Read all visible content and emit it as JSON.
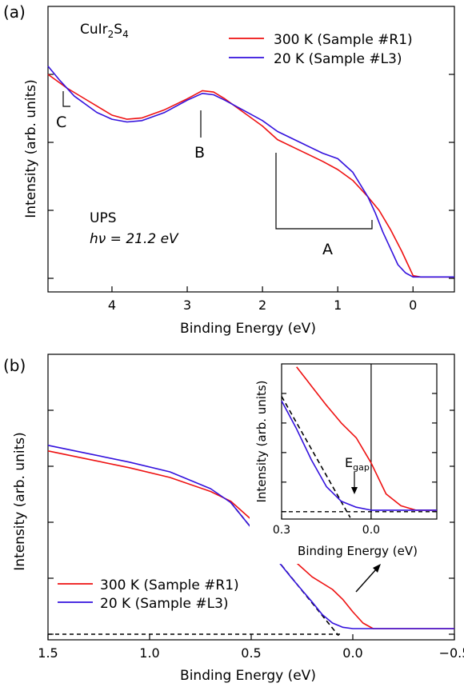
{
  "chart_data": [
    {
      "type": "line",
      "panel_label": "(a)",
      "compound": "CuIr",
      "compound_sub1": "2",
      "compound_mid": "S",
      "compound_sub2": "4",
      "xlabel": "Binding Energy (eV)",
      "ylabel": "Intensity (arb. units)",
      "xlim": [
        4.85,
        -0.55
      ],
      "x_reversed": true,
      "x_ticks": [
        4,
        3,
        2,
        1,
        0
      ],
      "x_tick_labels": [
        "4",
        "3",
        "2",
        "1",
        "0"
      ],
      "y_ticks": [
        0,
        0.25,
        0.5,
        0.75
      ],
      "ylim": [
        -0.05,
        1.0
      ],
      "method_label": "UPS",
      "photon_label": "hν = 21.2 eV",
      "feature_labels": [
        "A",
        "B",
        "C"
      ],
      "legend_placement": "top-right",
      "series": [
        {
          "name": "300 K (Sample #R1)",
          "color": "#ee1111",
          "x": [
            4.85,
            4.6,
            4.3,
            4.0,
            3.8,
            3.6,
            3.3,
            3.0,
            2.8,
            2.65,
            2.5,
            2.2,
            2.0,
            1.8,
            1.5,
            1.2,
            1.0,
            0.8,
            0.6,
            0.45,
            0.3,
            0.15,
            0.05,
            0.0,
            -0.1,
            -0.55
          ],
          "y": [
            0.75,
            0.7,
            0.65,
            0.6,
            0.585,
            0.59,
            0.62,
            0.66,
            0.69,
            0.685,
            0.66,
            0.6,
            0.56,
            0.51,
            0.47,
            0.43,
            0.4,
            0.36,
            0.3,
            0.25,
            0.18,
            0.1,
            0.04,
            0.01,
            0.005,
            0.005
          ]
        },
        {
          "name": "20 K (Sample #L3)",
          "color": "#3311dd",
          "x": [
            4.85,
            4.7,
            4.5,
            4.2,
            4.0,
            3.8,
            3.6,
            3.3,
            3.0,
            2.8,
            2.65,
            2.5,
            2.2,
            2.0,
            1.8,
            1.5,
            1.2,
            1.0,
            0.8,
            0.6,
            0.5,
            0.4,
            0.3,
            0.2,
            0.1,
            0.0,
            -0.55
          ],
          "y": [
            0.78,
            0.73,
            0.67,
            0.61,
            0.585,
            0.575,
            0.58,
            0.61,
            0.655,
            0.68,
            0.675,
            0.655,
            0.61,
            0.58,
            0.54,
            0.5,
            0.46,
            0.44,
            0.39,
            0.3,
            0.24,
            0.17,
            0.11,
            0.05,
            0.02,
            0.005,
            0.005
          ]
        }
      ]
    },
    {
      "type": "line",
      "panel_label": "(b)",
      "xlabel": "Binding Energy (eV)",
      "ylabel": "Intensity (arb. units)",
      "xlim": [
        1.5,
        -0.5
      ],
      "x_reversed": true,
      "x_ticks": [
        1.5,
        1.0,
        0.5,
        0.0,
        -0.5
      ],
      "x_tick_labels": [
        "1.5",
        "1.0",
        "0.5",
        "0.0",
        "−0.5"
      ],
      "y_ticks": [
        0,
        0.2,
        0.4,
        0.6,
        0.8
      ],
      "ylim": [
        -0.02,
        1.0
      ],
      "legend_placement": "bottom-left",
      "series": [
        {
          "name": "300 K (Sample #R1)",
          "color": "#ee1111",
          "x": [
            1.5,
            1.3,
            1.1,
            0.9,
            0.7,
            0.6,
            0.5,
            0.4,
            0.3,
            0.2,
            0.1,
            0.05,
            0.0,
            -0.05,
            -0.1,
            -0.5
          ],
          "y": [
            0.655,
            0.625,
            0.595,
            0.56,
            0.51,
            0.475,
            0.41,
            0.34,
            0.27,
            0.205,
            0.16,
            0.125,
            0.08,
            0.04,
            0.02,
            0.02
          ]
        },
        {
          "name": "20 K (Sample #L3)",
          "color": "#3311dd",
          "x": [
            1.5,
            1.3,
            1.1,
            0.9,
            0.7,
            0.6,
            0.5,
            0.4,
            0.3,
            0.2,
            0.15,
            0.1,
            0.05,
            0.0,
            -0.1,
            -0.5
          ],
          "y": [
            0.675,
            0.645,
            0.615,
            0.58,
            0.52,
            0.47,
            0.38,
            0.29,
            0.2,
            0.115,
            0.07,
            0.04,
            0.025,
            0.02,
            0.02,
            0.02
          ]
        }
      ],
      "fit_line": {
        "x": [
          0.6,
          0.07
        ],
        "y": [
          0.47,
          -0.005
        ]
      },
      "baseline": {
        "x": [
          1.5,
          0.06
        ],
        "y": [
          0.0,
          0.0
        ]
      }
    },
    {
      "type": "line",
      "role": "inset",
      "xlabel": "Binding Energy (eV)",
      "ylabel": "Intensity (arb. units)",
      "xlim": [
        0.3,
        -0.22
      ],
      "x_reversed": true,
      "x_ticks": [
        0.3,
        0.0
      ],
      "x_tick_labels": [
        "0.3",
        "0.0"
      ],
      "y_ticks": [
        0,
        0.2,
        0.4,
        0.6,
        0.8
      ],
      "ylim": [
        -0.05,
        1.0
      ],
      "annotation": "E",
      "annotation_sub": "gap",
      "series": [
        {
          "name": "300 K (Sample #R1)",
          "color": "#ee1111",
          "x": [
            0.25,
            0.2,
            0.15,
            0.1,
            0.05,
            0.0,
            -0.05,
            -0.1,
            -0.15,
            -0.22
          ],
          "y": [
            0.98,
            0.85,
            0.72,
            0.6,
            0.5,
            0.33,
            0.12,
            0.04,
            0.01,
            0.01
          ]
        },
        {
          "name": "20 K (Sample #L3)",
          "color": "#3311dd",
          "x": [
            0.3,
            0.25,
            0.2,
            0.15,
            0.1,
            0.05,
            0.0,
            -0.1,
            -0.22
          ],
          "y": [
            0.75,
            0.56,
            0.35,
            0.17,
            0.07,
            0.03,
            0.01,
            0.01,
            0.01
          ]
        }
      ],
      "fit_line": {
        "x": [
          0.3,
          0.07
        ],
        "y": [
          0.78,
          -0.04
        ]
      },
      "baseline": {
        "x": [
          0.3,
          -0.22
        ],
        "y": [
          0.0,
          0.0
        ]
      },
      "zero_line_x": 0.0
    }
  ]
}
